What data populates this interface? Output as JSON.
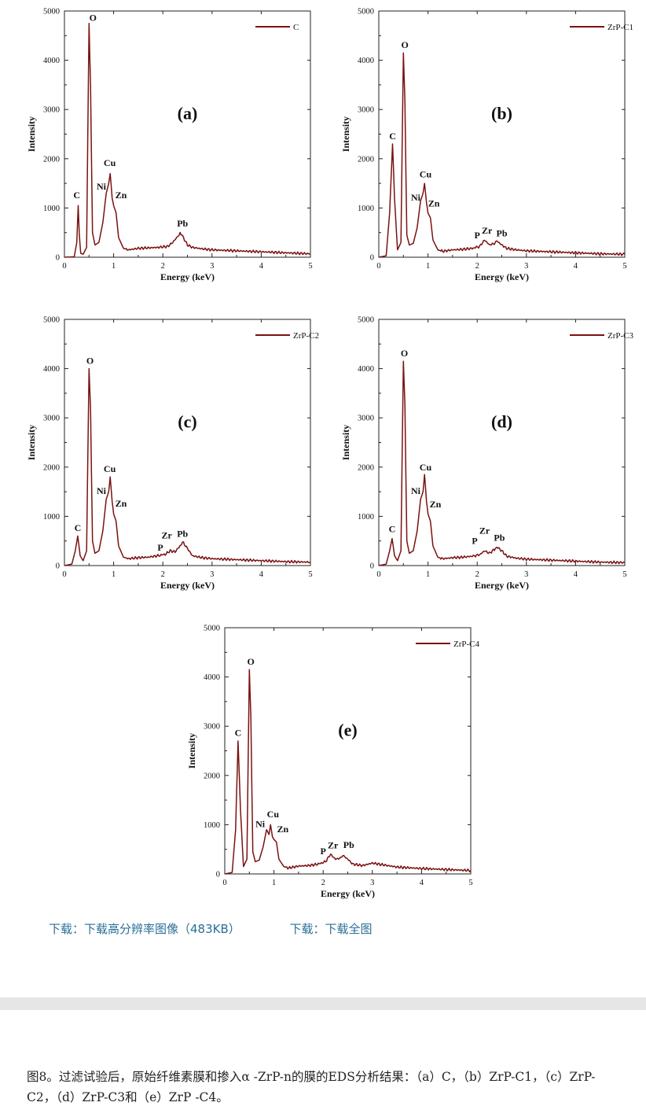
{
  "chart_data": [
    {
      "type": "line",
      "panel_label": "(a)",
      "legend": "C",
      "xlabel": "Energy (keV)",
      "ylabel": "Intensity",
      "xlim": [
        0,
        5
      ],
      "ylim": [
        0,
        5000
      ],
      "x_ticks": [
        "0",
        "1",
        "2",
        "3",
        "4",
        "5"
      ],
      "y_ticks": [
        "0",
        "1000",
        "2000",
        "3000",
        "4000",
        "5000"
      ],
      "series": [
        {
          "name": "C",
          "x": [
            0,
            0.2,
            0.25,
            0.28,
            0.3,
            0.33,
            0.38,
            0.45,
            0.5,
            0.53,
            0.57,
            0.62,
            0.7,
            0.78,
            0.85,
            0.9,
            0.93,
            0.97,
            1.0,
            1.05,
            1.1,
            1.2,
            1.3,
            1.5,
            1.7,
            1.9,
            2.1,
            2.2,
            2.3,
            2.35,
            2.4,
            2.5,
            2.6,
            2.8,
            3.0,
            3.5,
            4.0,
            4.5,
            5.0
          ],
          "y": [
            0,
            10,
            300,
            1050,
            500,
            80,
            60,
            200,
            4750,
            3500,
            500,
            250,
            300,
            700,
            1300,
            1500,
            1700,
            1200,
            1050,
            900,
            400,
            180,
            150,
            180,
            190,
            200,
            220,
            300,
            420,
            480,
            430,
            250,
            200,
            170,
            150,
            130,
            110,
            90,
            70
          ]
        }
      ],
      "annotations": [
        {
          "text": "O",
          "x": 0.58,
          "y": 4800
        },
        {
          "text": "C",
          "x": 0.25,
          "y": 1200
        },
        {
          "text": "Ni",
          "x": 0.75,
          "y": 1370
        },
        {
          "text": "Cu",
          "x": 0.92,
          "y": 1850
        },
        {
          "text": "Zn",
          "x": 1.15,
          "y": 1200
        },
        {
          "text": "Pb",
          "x": 2.4,
          "y": 620
        }
      ]
    },
    {
      "type": "line",
      "panel_label": "(b)",
      "legend": "ZrP-C1",
      "xlabel": "Energy (keV)",
      "ylabel": "Intensity",
      "xlim": [
        0,
        5
      ],
      "ylim": [
        0,
        5000
      ],
      "x_ticks": [
        "0",
        "1",
        "2",
        "3",
        "4",
        "5"
      ],
      "y_ticks": [
        "0",
        "1000",
        "2000",
        "3000",
        "4000",
        "5000"
      ],
      "series": [
        {
          "name": "ZrP-C1",
          "x": [
            0,
            0.15,
            0.22,
            0.28,
            0.32,
            0.38,
            0.45,
            0.5,
            0.53,
            0.57,
            0.62,
            0.7,
            0.78,
            0.85,
            0.9,
            0.93,
            0.97,
            1.0,
            1.05,
            1.1,
            1.2,
            1.3,
            1.5,
            1.7,
            1.9,
            2.05,
            2.15,
            2.25,
            2.35,
            2.4,
            2.5,
            2.6,
            2.8,
            3.0,
            3.5,
            4.0,
            4.5,
            5.0
          ],
          "y": [
            0,
            30,
            900,
            2300,
            1200,
            150,
            300,
            4150,
            3200,
            450,
            250,
            280,
            600,
            1150,
            1300,
            1500,
            1100,
            900,
            800,
            350,
            150,
            120,
            150,
            160,
            180,
            220,
            350,
            250,
            280,
            330,
            250,
            180,
            150,
            130,
            110,
            90,
            70,
            60
          ]
        }
      ],
      "annotations": [
        {
          "text": "O",
          "x": 0.53,
          "y": 4250
        },
        {
          "text": "C",
          "x": 0.28,
          "y": 2400
        },
        {
          "text": "Ni",
          "x": 0.75,
          "y": 1150
        },
        {
          "text": "Cu",
          "x": 0.95,
          "y": 1620
        },
        {
          "text": "Zn",
          "x": 1.12,
          "y": 1030
        },
        {
          "text": "P",
          "x": 2.0,
          "y": 380
        },
        {
          "text": "Zr",
          "x": 2.2,
          "y": 480
        },
        {
          "text": "Pb",
          "x": 2.5,
          "y": 420
        }
      ]
    },
    {
      "type": "line",
      "panel_label": "(c)",
      "legend": "ZrP-C2",
      "xlabel": "Energy (keV)",
      "ylabel": "Intensity",
      "xlim": [
        0,
        5
      ],
      "ylim": [
        0,
        5000
      ],
      "x_ticks": [
        "0",
        "1",
        "2",
        "3",
        "4",
        "5"
      ],
      "y_ticks": [
        "0",
        "1000",
        "2000",
        "3000",
        "4000",
        "5000"
      ],
      "series": [
        {
          "name": "ZrP-C2",
          "x": [
            0,
            0.15,
            0.22,
            0.27,
            0.32,
            0.38,
            0.45,
            0.5,
            0.53,
            0.57,
            0.62,
            0.7,
            0.78,
            0.85,
            0.9,
            0.93,
            0.97,
            1.0,
            1.05,
            1.1,
            1.2,
            1.3,
            1.5,
            1.7,
            1.9,
            2.05,
            2.15,
            2.25,
            2.35,
            2.4,
            2.5,
            2.6,
            2.8,
            3.0,
            3.5,
            4.0,
            4.5,
            5.0
          ],
          "y": [
            0,
            30,
            300,
            600,
            200,
            100,
            300,
            4000,
            3200,
            500,
            250,
            300,
            700,
            1350,
            1500,
            1800,
            1300,
            1050,
            900,
            400,
            170,
            140,
            160,
            170,
            200,
            230,
            300,
            280,
            400,
            480,
            350,
            200,
            160,
            140,
            120,
            100,
            80,
            70
          ]
        }
      ],
      "annotations": [
        {
          "text": "O",
          "x": 0.52,
          "y": 4100
        },
        {
          "text": "C",
          "x": 0.27,
          "y": 700
        },
        {
          "text": "Ni",
          "x": 0.75,
          "y": 1450
        },
        {
          "text": "Cu",
          "x": 0.92,
          "y": 1900
        },
        {
          "text": "Zn",
          "x": 1.15,
          "y": 1200
        },
        {
          "text": "P",
          "x": 1.95,
          "y": 300
        },
        {
          "text": "Zr",
          "x": 2.08,
          "y": 550
        },
        {
          "text": "Pb",
          "x": 2.4,
          "y": 580
        }
      ]
    },
    {
      "type": "line",
      "panel_label": "(d)",
      "legend": "ZrP-C3",
      "xlabel": "Energy (keV)",
      "ylabel": "Intensity",
      "xlim": [
        0,
        5
      ],
      "ylim": [
        0,
        5000
      ],
      "x_ticks": [
        "0",
        "1",
        "2",
        "3",
        "4",
        "5"
      ],
      "y_ticks": [
        "0",
        "1000",
        "2000",
        "3000",
        "4000",
        "5000"
      ],
      "series": [
        {
          "name": "ZrP-C3",
          "x": [
            0,
            0.15,
            0.22,
            0.27,
            0.32,
            0.38,
            0.45,
            0.5,
            0.53,
            0.57,
            0.62,
            0.7,
            0.78,
            0.85,
            0.9,
            0.93,
            0.97,
            1.0,
            1.05,
            1.1,
            1.2,
            1.3,
            1.5,
            1.7,
            1.9,
            2.05,
            2.15,
            2.25,
            2.35,
            2.4,
            2.5,
            2.6,
            2.8,
            3.0,
            3.5,
            4.0,
            4.5,
            5.0
          ],
          "y": [
            0,
            30,
            300,
            550,
            200,
            100,
            300,
            4150,
            3300,
            500,
            250,
            300,
            700,
            1350,
            1500,
            1850,
            1300,
            1050,
            900,
            400,
            170,
            140,
            160,
            170,
            190,
            220,
            300,
            250,
            330,
            380,
            300,
            190,
            150,
            130,
            110,
            90,
            70,
            60
          ]
        }
      ],
      "annotations": [
        {
          "text": "O",
          "x": 0.52,
          "y": 4250
        },
        {
          "text": "C",
          "x": 0.27,
          "y": 680
        },
        {
          "text": "Ni",
          "x": 0.75,
          "y": 1450
        },
        {
          "text": "Cu",
          "x": 0.95,
          "y": 1930
        },
        {
          "text": "Zn",
          "x": 1.15,
          "y": 1180
        },
        {
          "text": "P",
          "x": 1.95,
          "y": 440
        },
        {
          "text": "Zr",
          "x": 2.15,
          "y": 650
        },
        {
          "text": "Pb",
          "x": 2.45,
          "y": 500
        }
      ]
    },
    {
      "type": "line",
      "panel_label": "(e)",
      "legend": "ZrP-C4",
      "xlabel": "Energy (keV)",
      "ylabel": "Intensity",
      "xlim": [
        0,
        5
      ],
      "ylim": [
        0,
        5000
      ],
      "x_ticks": [
        "0",
        "1",
        "2",
        "3",
        "4",
        "5"
      ],
      "y_ticks": [
        "0",
        "1000",
        "2000",
        "3000",
        "4000",
        "5000"
      ],
      "series": [
        {
          "name": "ZrP-C4",
          "x": [
            0,
            0.15,
            0.22,
            0.27,
            0.32,
            0.38,
            0.45,
            0.5,
            0.53,
            0.57,
            0.62,
            0.7,
            0.78,
            0.85,
            0.9,
            0.93,
            0.97,
            1.0,
            1.05,
            1.1,
            1.2,
            1.3,
            1.5,
            1.7,
            1.9,
            2.05,
            2.15,
            2.25,
            2.35,
            2.4,
            2.5,
            2.6,
            2.8,
            3.0,
            3.5,
            4.0,
            4.5,
            5.0
          ],
          "y": [
            0,
            30,
            900,
            2700,
            1300,
            150,
            300,
            4150,
            3200,
            450,
            250,
            280,
            550,
            900,
            800,
            1000,
            750,
            700,
            650,
            300,
            150,
            120,
            160,
            170,
            200,
            250,
            400,
            300,
            320,
            380,
            300,
            200,
            170,
            220,
            140,
            110,
            90,
            70
          ]
        }
      ],
      "annotations": [
        {
          "text": "O",
          "x": 0.53,
          "y": 4250
        },
        {
          "text": "C",
          "x": 0.27,
          "y": 2800
        },
        {
          "text": "Ni",
          "x": 0.72,
          "y": 950
        },
        {
          "text": "Cu",
          "x": 0.98,
          "y": 1150
        },
        {
          "text": "Zn",
          "x": 1.18,
          "y": 850
        },
        {
          "text": "P",
          "x": 2.0,
          "y": 400
        },
        {
          "text": "Zr",
          "x": 2.2,
          "y": 520
        },
        {
          "text": "Pb",
          "x": 2.52,
          "y": 530
        }
      ]
    }
  ],
  "downloads": {
    "high_res": "下载：下载高分辨率图像（483KB）",
    "full": "下载：下载全图"
  },
  "caption": "图8。过滤试验后，原始纤维素膜和掺入α -ZrP-n的膜的EDS分析结果：（a）C，（b）ZrP-C1，（c）ZrP-C2，（d）ZrP-C3和（e）ZrP -C4。",
  "colors": {
    "line": "#7a1212",
    "link": "#2a6f97",
    "separator": "#e6e6e6"
  }
}
